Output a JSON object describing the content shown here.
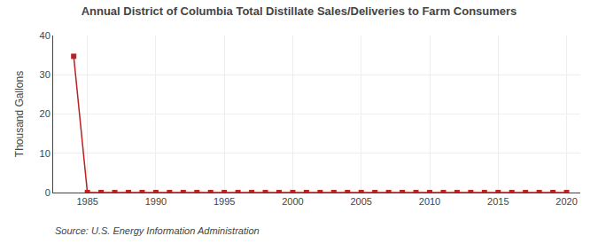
{
  "chart_data": {
    "type": "line",
    "title": "Annual District of Columbia Total Distillate Sales/Deliveries to Farm Consumers",
    "y_label": "Thousand Gallons",
    "annotations": [
      "Source: U.S. Energy Information Administration"
    ],
    "x": [
      1984,
      1985,
      1986,
      1987,
      1988,
      1989,
      1990,
      1991,
      1992,
      1993,
      1994,
      1995,
      1996,
      1997,
      1998,
      1999,
      2000,
      2001,
      2002,
      2003,
      2004,
      2005,
      2006,
      2007,
      2008,
      2009,
      2010,
      2011,
      2012,
      2013,
      2014,
      2015,
      2016,
      2017,
      2018,
      2019,
      2020
    ],
    "values": [
      34.7,
      0,
      0,
      0,
      0,
      0,
      0,
      0,
      0,
      0,
      0,
      0,
      0,
      0,
      0,
      0,
      0,
      0,
      0,
      0,
      0,
      0,
      0,
      0,
      0,
      0,
      0,
      0,
      0,
      0,
      0,
      0,
      0,
      0,
      0,
      0,
      0
    ],
    "color": "#bb2222",
    "marker": "square",
    "xlim": [
      1982.5,
      2021
    ],
    "xticks": [
      1985,
      1990,
      1995,
      2000,
      2005,
      2010,
      2015,
      2020
    ],
    "ylim": [
      0,
      40
    ],
    "yticks": [
      0,
      10,
      20,
      30,
      40
    ],
    "grid": true
  }
}
